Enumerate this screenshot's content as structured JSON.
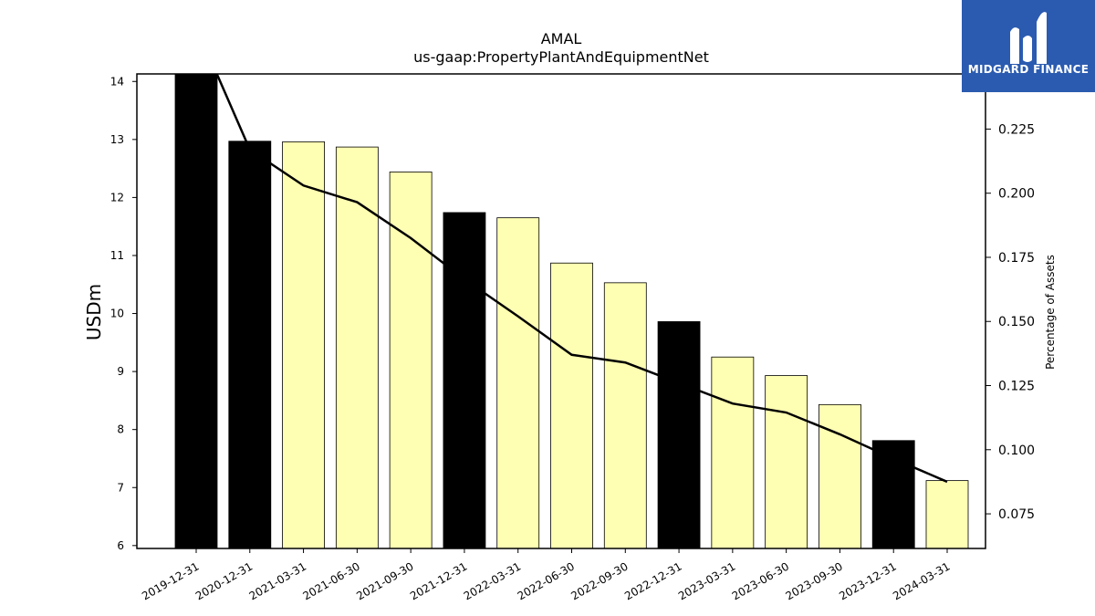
{
  "chart_data": {
    "type": "bar",
    "title": "AMAL",
    "subtitle": "us-gaap:PropertyPlantAndEquipmentNet",
    "ylabel": "USDm",
    "y2label": "Percentage of Assets",
    "categories": [
      "2019-12-31",
      "2020-12-31",
      "2021-03-31",
      "2021-06-30",
      "2021-09-30",
      "2021-12-31",
      "2022-03-31",
      "2022-06-30",
      "2022-09-30",
      "2022-12-31",
      "2023-03-31",
      "2023-06-30",
      "2023-09-30",
      "2023-12-31",
      "2024-03-31"
    ],
    "series": [
      {
        "type": "bar",
        "values": [
          14.13,
          12.97,
          12.96,
          12.87,
          12.44,
          11.74,
          11.65,
          10.87,
          10.53,
          9.86,
          9.25,
          8.93,
          8.43,
          7.81,
          7.12
        ],
        "annual_flags": [
          true,
          true,
          false,
          false,
          false,
          true,
          false,
          false,
          false,
          true,
          false,
          false,
          false,
          true,
          false
        ],
        "colors": {
          "annual": "#000000",
          "quarter": "#ffffb3"
        }
      },
      {
        "type": "line",
        "axis": "right",
        "values": [
          0.265,
          0.217,
          0.203,
          0.1965,
          0.1825,
          0.1665,
          0.152,
          0.137,
          0.134,
          0.126,
          0.118,
          0.1145,
          0.106,
          0.0965,
          0.0875
        ],
        "color": "#000000"
      }
    ],
    "ylim": [
      5.95,
      14.13
    ],
    "yticks": [
      "6",
      "7",
      "8",
      "9",
      "10",
      "11",
      "12",
      "13",
      "14"
    ],
    "y2lim": [
      0.0615,
      0.2465
    ],
    "y2ticks": [
      "0.075",
      "0.100",
      "0.125",
      "0.150",
      "0.175",
      "0.200",
      "0.225"
    ],
    "grid": false,
    "legend": "none"
  },
  "logo": {
    "text": "MIDGARD FINANCE",
    "icon": "midgard-mh-logo-icon",
    "color": "#2b5bb0"
  }
}
